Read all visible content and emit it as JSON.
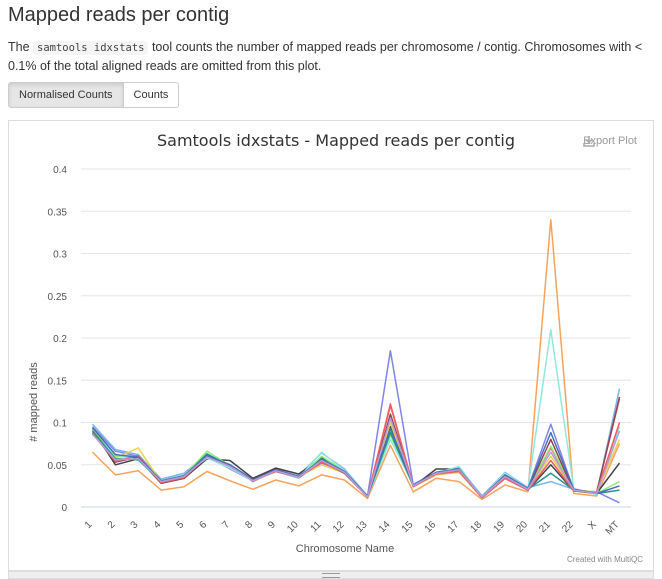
{
  "section": {
    "title": "Mapped reads per contig",
    "desc_pre": "The ",
    "desc_code": "samtools idxstats",
    "desc_post": " tool counts the number of mapped reads per chromosome / contig. Chromosomes with < 0.1% of the total aligned reads are omitted from this plot."
  },
  "buttons": {
    "normalised": "Normalised Counts",
    "counts": "Counts"
  },
  "plot": {
    "export_label": "Export Plot",
    "credit": "Created with MultiQC"
  },
  "chart_data": {
    "type": "line",
    "title": "Samtools idxstats - Mapped reads per contig",
    "xlabel": "Chromosome Name",
    "ylabel": "# mapped reads",
    "ylim": [
      0,
      0.4
    ],
    "yticks": [
      "0",
      "0.05",
      "0.1",
      "0.15",
      "0.2",
      "0.25",
      "0.3",
      "0.35",
      "0.4"
    ],
    "categories": [
      "1",
      "2",
      "3",
      "4",
      "5",
      "6",
      "7",
      "8",
      "9",
      "10",
      "11",
      "12",
      "13",
      "14",
      "15",
      "16",
      "17",
      "18",
      "19",
      "20",
      "21",
      "22",
      "X",
      "MT"
    ],
    "grid": true,
    "legend": false,
    "series": [
      {
        "color": "#f7a35c",
        "values": [
          0.065,
          0.038,
          0.043,
          0.02,
          0.024,
          0.042,
          0.031,
          0.021,
          0.032,
          0.025,
          0.038,
          0.032,
          0.01,
          0.073,
          0.018,
          0.034,
          0.03,
          0.009,
          0.026,
          0.018,
          0.34,
          0.016,
          0.013,
          0.075
        ]
      },
      {
        "color": "#8085e9",
        "values": [
          0.095,
          0.066,
          0.06,
          0.031,
          0.038,
          0.06,
          0.045,
          0.031,
          0.045,
          0.036,
          0.052,
          0.042,
          0.013,
          0.185,
          0.026,
          0.04,
          0.045,
          0.012,
          0.038,
          0.022,
          0.098,
          0.02,
          0.018,
          0.005
        ]
      },
      {
        "color": "#7cb5ec",
        "values": [
          0.098,
          0.068,
          0.062,
          0.033,
          0.04,
          0.062,
          0.05,
          0.033,
          0.044,
          0.037,
          0.064,
          0.045,
          0.013,
          0.09,
          0.027,
          0.041,
          0.047,
          0.013,
          0.041,
          0.023,
          0.03,
          0.021,
          0.015,
          0.14
        ]
      },
      {
        "color": "#f15c80",
        "values": [
          0.09,
          0.055,
          0.058,
          0.029,
          0.036,
          0.058,
          0.05,
          0.03,
          0.043,
          0.034,
          0.055,
          0.041,
          0.012,
          0.12,
          0.025,
          0.04,
          0.043,
          0.012,
          0.036,
          0.022,
          0.07,
          0.02,
          0.017,
          0.128
        ]
      },
      {
        "color": "#434348",
        "values": [
          0.092,
          0.05,
          0.057,
          0.028,
          0.034,
          0.057,
          0.055,
          0.034,
          0.046,
          0.039,
          0.058,
          0.04,
          0.012,
          0.095,
          0.024,
          0.045,
          0.045,
          0.011,
          0.034,
          0.02,
          0.05,
          0.019,
          0.016,
          0.052
        ]
      },
      {
        "color": "#e4d354",
        "values": [
          0.091,
          0.058,
          0.07,
          0.029,
          0.035,
          0.06,
          0.047,
          0.031,
          0.042,
          0.036,
          0.05,
          0.04,
          0.012,
          0.1,
          0.024,
          0.038,
          0.041,
          0.011,
          0.035,
          0.021,
          0.06,
          0.02,
          0.018,
          0.08
        ]
      },
      {
        "color": "#90ed7d",
        "values": [
          0.093,
          0.06,
          0.058,
          0.03,
          0.037,
          0.066,
          0.049,
          0.032,
          0.043,
          0.035,
          0.06,
          0.043,
          0.012,
          0.085,
          0.026,
          0.04,
          0.044,
          0.011,
          0.037,
          0.021,
          0.072,
          0.02,
          0.016,
          0.03
        ]
      },
      {
        "color": "#8d4653",
        "values": [
          0.088,
          0.053,
          0.059,
          0.028,
          0.034,
          0.059,
          0.05,
          0.032,
          0.044,
          0.036,
          0.054,
          0.04,
          0.012,
          0.11,
          0.025,
          0.041,
          0.043,
          0.011,
          0.034,
          0.021,
          0.08,
          0.019,
          0.017,
          0.13
        ]
      },
      {
        "color": "#91e8e1",
        "values": [
          0.085,
          0.063,
          0.055,
          0.031,
          0.038,
          0.058,
          0.046,
          0.031,
          0.042,
          0.034,
          0.065,
          0.043,
          0.012,
          0.08,
          0.026,
          0.04,
          0.048,
          0.012,
          0.04,
          0.022,
          0.21,
          0.022,
          0.015,
          0.095
        ]
      },
      {
        "color": "#2b908f",
        "values": [
          0.09,
          0.057,
          0.056,
          0.03,
          0.036,
          0.063,
          0.048,
          0.032,
          0.043,
          0.035,
          0.057,
          0.042,
          0.012,
          0.088,
          0.025,
          0.041,
          0.044,
          0.011,
          0.037,
          0.021,
          0.04,
          0.02,
          0.016,
          0.02
        ]
      },
      {
        "color": "#f45b5b",
        "values": [
          0.087,
          0.054,
          0.061,
          0.029,
          0.035,
          0.06,
          0.049,
          0.031,
          0.042,
          0.035,
          0.053,
          0.041,
          0.012,
          0.122,
          0.024,
          0.039,
          0.042,
          0.011,
          0.034,
          0.02,
          0.055,
          0.019,
          0.017,
          0.1
        ]
      },
      {
        "color": "#4a6fb5",
        "values": [
          0.094,
          0.062,
          0.059,
          0.031,
          0.037,
          0.061,
          0.05,
          0.032,
          0.044,
          0.036,
          0.056,
          0.042,
          0.013,
          0.093,
          0.026,
          0.041,
          0.045,
          0.012,
          0.038,
          0.022,
          0.088,
          0.021,
          0.016,
          0.025
        ]
      },
      {
        "color": "#b39ddb",
        "values": [
          0.086,
          0.056,
          0.057,
          0.03,
          0.036,
          0.059,
          0.048,
          0.031,
          0.043,
          0.035,
          0.055,
          0.041,
          0.012,
          0.105,
          0.025,
          0.04,
          0.044,
          0.012,
          0.036,
          0.021,
          0.065,
          0.02,
          0.016,
          0.09
        ]
      }
    ]
  }
}
